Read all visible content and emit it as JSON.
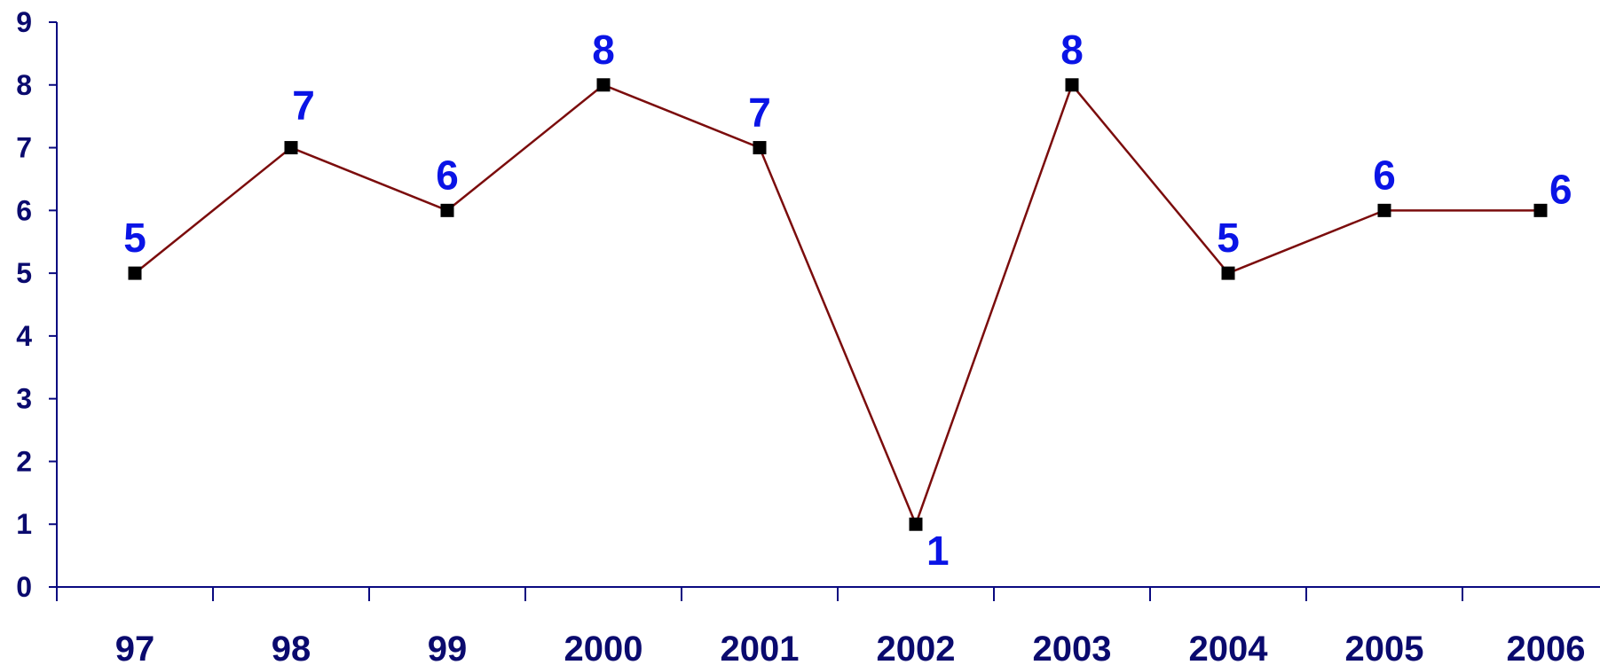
{
  "chart_data": {
    "type": "line",
    "title": "",
    "xlabel": "",
    "ylabel": "",
    "categories": [
      "97",
      "98",
      "99",
      "2000",
      "2001",
      "2002",
      "2003",
      "2004",
      "2005",
      "2006"
    ],
    "series": [
      {
        "values": [
          5,
          7,
          6,
          8,
          7,
          1,
          8,
          5,
          6,
          6
        ],
        "labels": [
          "5",
          "7",
          "6",
          "8",
          "7",
          "1",
          "8",
          "5",
          "6",
          "6"
        ]
      }
    ],
    "ylim": [
      0,
      9
    ],
    "yticks": [
      "0",
      "1",
      "2",
      "3",
      "4",
      "5",
      "6",
      "7",
      "8",
      "9"
    ],
    "grid": false,
    "legend": "none",
    "colors": {
      "axis": "#0a0a80",
      "tick_label": "#0a0a6e",
      "line": "#7b0c0c",
      "marker": "#000000",
      "data_label": "#0a14e6"
    },
    "marker": "square"
  }
}
